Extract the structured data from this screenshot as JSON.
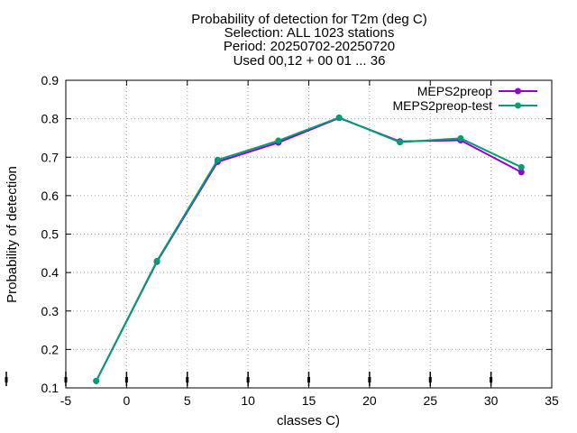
{
  "chart_data": {
    "type": "line",
    "title_lines": [
      "Probability of detection  for T2m (deg C)",
      "Selection: ALL   1023 stations",
      "Period: 20250702-20250720",
      "Used 00,12 + 00 01 ... 36"
    ],
    "xlabel": "classes C)",
    "ylabel": "Probability of detection",
    "xlim": [
      -5,
      35
    ],
    "ylim": [
      0.1,
      0.9
    ],
    "xticks": [
      -5,
      0,
      5,
      10,
      15,
      20,
      25,
      30,
      35
    ],
    "yticks": [
      0.1,
      0.2,
      0.3,
      0.4,
      0.5,
      0.6,
      0.7,
      0.8,
      0.9
    ],
    "xtick_labels": [
      "-5",
      "0",
      "5",
      "10",
      "15",
      "20",
      "25",
      "30",
      "35"
    ],
    "ytick_labels": [
      "0.1",
      "0.2",
      "0.3",
      "0.4",
      "0.5",
      "0.6",
      "0.7",
      "0.8",
      "0.9"
    ],
    "grid": true,
    "legend_position": "top-right",
    "x": [
      -2.5,
      2.5,
      7.5,
      12.5,
      17.5,
      22.5,
      27.5,
      32.5
    ],
    "series": [
      {
        "name": "MEPS2preop",
        "color": "#9400d3",
        "values": [
          0.118,
          0.428,
          0.688,
          0.738,
          0.802,
          0.741,
          0.744,
          0.661
        ]
      },
      {
        "name": "MEPS2preop-test",
        "color": "#009e73",
        "values": [
          0.118,
          0.43,
          0.693,
          0.743,
          0.803,
          0.739,
          0.749,
          0.674
        ]
      }
    ],
    "marker_x": [
      -10,
      -5,
      0,
      5,
      10,
      15,
      20,
      25,
      30
    ]
  }
}
